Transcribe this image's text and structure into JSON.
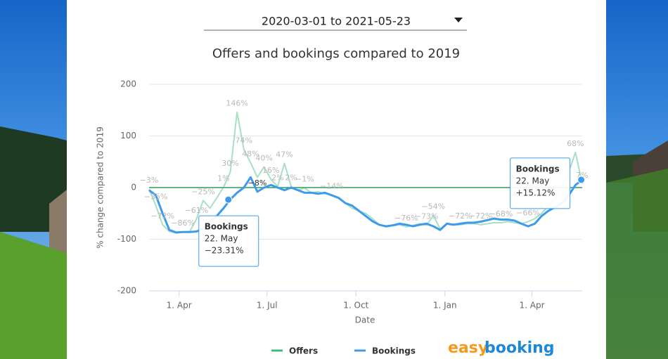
{
  "dropdown": {
    "label": "2020-03-01 to 2021-05-23"
  },
  "chart_data": {
    "type": "line",
    "title": "Offers and bookings compared to 2019",
    "xlabel": "Date",
    "ylabel": "% change compared to 2019",
    "x": [
      "2020-03-01",
      "2020-03-08",
      "2020-03-15",
      "2020-03-22",
      "2020-03-29",
      "2020-04-05",
      "2020-04-12",
      "2020-04-19",
      "2020-04-26",
      "2020-05-03",
      "2020-05-10",
      "2020-05-17",
      "2020-05-24",
      "2020-05-31",
      "2020-06-07",
      "2020-06-14",
      "2020-06-21",
      "2020-06-28",
      "2020-07-05",
      "2020-07-12",
      "2020-07-19",
      "2020-07-26",
      "2020-08-02",
      "2020-08-09",
      "2020-08-16",
      "2020-08-23",
      "2020-08-30",
      "2020-09-06",
      "2020-09-13",
      "2020-09-20",
      "2020-09-27",
      "2020-10-04",
      "2020-10-11",
      "2020-10-18",
      "2020-10-25",
      "2020-11-01",
      "2020-11-08",
      "2020-11-15",
      "2020-11-22",
      "2020-11-29",
      "2020-12-06",
      "2020-12-13",
      "2020-12-20",
      "2020-12-27",
      "2021-01-03",
      "2021-01-10",
      "2021-01-17",
      "2021-01-24",
      "2021-01-31",
      "2021-02-07",
      "2021-02-14",
      "2021-02-21",
      "2021-02-28",
      "2021-03-07",
      "2021-03-14",
      "2021-03-21",
      "2021-03-28",
      "2021-04-04",
      "2021-04-11",
      "2021-04-18",
      "2021-04-25",
      "2021-05-02",
      "2021-05-09",
      "2021-05-16",
      "2021-05-23"
    ],
    "series": [
      {
        "name": "Offers",
        "color": "#3dbb7a",
        "values": [
          -3,
          -35,
          -72,
          -85,
          -88,
          -86,
          -85,
          -61,
          -25,
          -40,
          -20,
          1,
          30,
          146,
          74,
          48,
          20,
          40,
          16,
          2,
          47,
          2,
          -5,
          -1,
          -10,
          -8,
          -12,
          -14,
          -20,
          -30,
          -40,
          -45,
          -50,
          -60,
          -72,
          -76,
          -74,
          -72,
          -76,
          -73,
          -70,
          -73,
          -54,
          -80,
          -70,
          -72,
          -72,
          -70,
          -70,
          -72,
          -70,
          -68,
          -68,
          -66,
          -68,
          -70,
          -66,
          -60,
          -50,
          -35,
          -20,
          0,
          30,
          68,
          7
        ],
        "value_labels": [
          "−3%",
          "−35%",
          "−72%",
          null,
          null,
          "−86%",
          null,
          "−61%",
          "−25%",
          null,
          null,
          "1%",
          "30%",
          "146%",
          "74%",
          "48%",
          null,
          "40%",
          "16%",
          "2%",
          "47%",
          "2%",
          null,
          "−1%",
          null,
          null,
          null,
          "−14%",
          null,
          null,
          null,
          null,
          null,
          null,
          null,
          null,
          null,
          null,
          "−76%",
          null,
          null,
          "−73%",
          "−54%",
          null,
          null,
          null,
          "−72%",
          null,
          null,
          "−72%",
          null,
          null,
          "−68%",
          null,
          null,
          null,
          "−66%",
          null,
          null,
          null,
          null,
          null,
          null,
          "68%",
          "7%"
        ]
      },
      {
        "name": "Bookings",
        "color": "#3d9be9",
        "values": [
          -5,
          -15,
          -50,
          -82,
          -87,
          -86,
          -86,
          -85,
          -80,
          -65,
          -55,
          -40,
          -23,
          -10,
          0,
          20,
          -8,
          0,
          5,
          0,
          -5,
          0,
          -5,
          -10,
          -10,
          -12,
          -10,
          -15,
          -20,
          -30,
          -35,
          -45,
          -55,
          -65,
          -72,
          -75,
          -73,
          -70,
          -72,
          -75,
          -72,
          -70,
          -75,
          -82,
          -70,
          -72,
          -70,
          -68,
          -68,
          -66,
          -63,
          -60,
          -62,
          -62,
          -64,
          -70,
          -75,
          -70,
          -55,
          -45,
          -38,
          -30,
          -15,
          5,
          15
        ],
        "value_labels": [
          null,
          null,
          null,
          null,
          null,
          null,
          null,
          null,
          null,
          null,
          null,
          null,
          null,
          null,
          null,
          null,
          "−8%",
          null,
          null,
          null,
          null,
          null,
          null,
          null,
          null,
          null,
          null,
          null,
          null,
          null,
          null,
          null,
          null,
          null,
          null,
          null,
          null,
          null,
          null,
          null,
          null,
          null,
          null,
          null,
          null,
          null,
          null,
          null,
          null,
          null,
          null,
          null,
          null,
          null,
          null,
          null,
          null,
          null,
          null,
          null,
          null,
          null,
          null,
          null,
          null
        ]
      }
    ],
    "xlim": [
      "2020-03-01",
      "2021-05-23"
    ],
    "xticks": [
      {
        "value": "2020-04-01",
        "label": "1. Apr"
      },
      {
        "value": "2020-07-01",
        "label": "1. Jul"
      },
      {
        "value": "2020-10-01",
        "label": "1. Oct"
      },
      {
        "value": "2021-01-01",
        "label": "1. Jan"
      },
      {
        "value": "2021-04-01",
        "label": "1. Apr"
      }
    ],
    "ylim": [
      -200,
      200
    ],
    "yticks": [
      -200,
      -100,
      0,
      100,
      200
    ],
    "grid": true,
    "plot_lines": [
      {
        "value": 0,
        "color": "#2e9e5b"
      }
    ],
    "legend": "bottom",
    "tooltips": [
      {
        "title": "Bookings",
        "x": "2020-05-22",
        "date": "22. May",
        "value": -23.31,
        "label": "−23.31%"
      },
      {
        "title": "Bookings",
        "x": "2021-05-22",
        "date": "22. May",
        "value": 15.12,
        "label": "+15.12%"
      }
    ]
  },
  "logo": {
    "part1": "easy",
    "part2": "booking"
  }
}
